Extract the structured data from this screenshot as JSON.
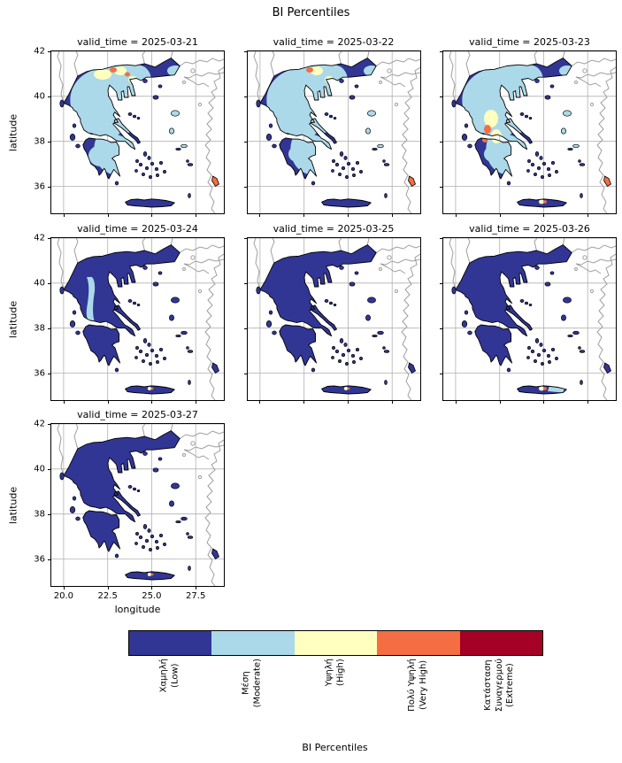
{
  "chart_data": {
    "type": "heatmap",
    "subtype": "faceted-choropleth-map-of-greece",
    "title": "BI Percentiles",
    "facet_variable": "valid_time",
    "xlabel": "longitude",
    "ylabel": "latitude",
    "x_ticks": [
      20.0,
      22.5,
      25.0,
      27.5
    ],
    "x_tick_labels": [
      "20.0",
      "22.5",
      "25.0",
      "27.5"
    ],
    "y_ticks": [
      42,
      40,
      38,
      36
    ],
    "y_tick_labels": [
      "42",
      "40",
      "38",
      "36"
    ],
    "x_range": [
      19.3,
      29.1
    ],
    "y_range": [
      34.8,
      42.0
    ],
    "grid": true,
    "categories": [
      {
        "id": "low",
        "label": "Χαμηλή",
        "label_en": "(Low)",
        "lines": [
          "Χαμηλή",
          "(Low)"
        ],
        "color": "#313695"
      },
      {
        "id": "moderate",
        "label": "Μέση",
        "label_en": "(Moderate)",
        "lines": [
          "Μέση",
          "(Moderate)"
        ],
        "color": "#abd9e9"
      },
      {
        "id": "high",
        "label": "Υψηλή",
        "label_en": "(High)",
        "lines": [
          "Υψηλή",
          "(High)"
        ],
        "color": "#ffffbf"
      },
      {
        "id": "very_high",
        "label": "Πολύ Υψηλή",
        "label_en": "(Very High)",
        "lines": [
          "Πολύ Υψηλή",
          "(Very High)"
        ],
        "color": "#f46d43"
      },
      {
        "id": "extreme",
        "label": "Κατάσταση Συναγερμού",
        "label_en": "(Extreme)",
        "lines": [
          "Κατάσταση",
          "Συναγερμού",
          "(Extreme)"
        ],
        "color": "#a50026"
      }
    ],
    "colorbar": {
      "title": "BI Percentiles",
      "orientation": "horizontal",
      "position": "bottom"
    },
    "facets": [
      {
        "date": "2025-03-21",
        "label": "valid_time = 2025-03-21",
        "islands_ne": "moderate",
        "rhodes": "very_high",
        "patches": [
          [
            "northBlob",
            "moderate"
          ],
          [
            "centralBlob",
            "moderate"
          ],
          [
            "pelopBlob",
            "moderate"
          ],
          [
            "thrace",
            "moderate"
          ],
          [
            "ny1",
            "high"
          ],
          [
            "ny2",
            "high"
          ],
          [
            "ny3",
            "high"
          ],
          [
            "no1",
            "very_high"
          ],
          [
            "no2",
            "very_high"
          ]
        ]
      },
      {
        "date": "2025-03-22",
        "label": "valid_time = 2025-03-22",
        "islands_ne": "moderate",
        "rhodes": "very_high",
        "patches": [
          [
            "northBlob",
            "moderate"
          ],
          [
            "centralBlob",
            "moderate"
          ],
          [
            "pelopBlobSm",
            "moderate"
          ],
          [
            "thrace",
            "moderate"
          ],
          [
            "ny2",
            "high"
          ],
          [
            "ny3",
            "high"
          ],
          [
            "no1",
            "very_high"
          ]
        ]
      },
      {
        "date": "2025-03-23",
        "label": "valid_time = 2025-03-23",
        "islands_ne": "moderate",
        "rhodes": "very_high",
        "patches": [
          [
            "northBlob",
            "moderate"
          ],
          [
            "centralBlob",
            "moderate"
          ],
          [
            "pelopBlobSm",
            "moderate"
          ],
          [
            "thrace",
            "moderate"
          ],
          [
            "wy1",
            "high"
          ],
          [
            "wy2",
            "high"
          ],
          [
            "wo1",
            "very_high"
          ],
          [
            "wo2",
            "very_high"
          ],
          [
            "creteY",
            "high"
          ],
          [
            "creteO",
            "very_high"
          ]
        ]
      },
      {
        "date": "2025-03-24",
        "label": "valid_time = 2025-03-24",
        "rhodes": "low",
        "patches": [
          [
            "pindusStrip",
            "moderate"
          ],
          [
            "creteYSm",
            "high"
          ],
          [
            "creteOT",
            "very_high"
          ]
        ]
      },
      {
        "date": "2025-03-25",
        "label": "valid_time = 2025-03-25",
        "rhodes": "low",
        "patches": [
          [
            "creteYSm",
            "high"
          ],
          [
            "creteOT",
            "very_high"
          ]
        ]
      },
      {
        "date": "2025-03-26",
        "label": "valid_time = 2025-03-26",
        "rhodes": "low",
        "patches": [
          [
            "creteEast",
            "moderate"
          ],
          [
            "creteY",
            "high"
          ],
          [
            "creteO",
            "very_high"
          ]
        ]
      },
      {
        "date": "2025-03-27",
        "label": "valid_time = 2025-03-27",
        "rhodes": "low",
        "patches": [
          [
            "creteYSm",
            "high"
          ],
          [
            "creteOT",
            "very_high"
          ]
        ]
      }
    ]
  }
}
